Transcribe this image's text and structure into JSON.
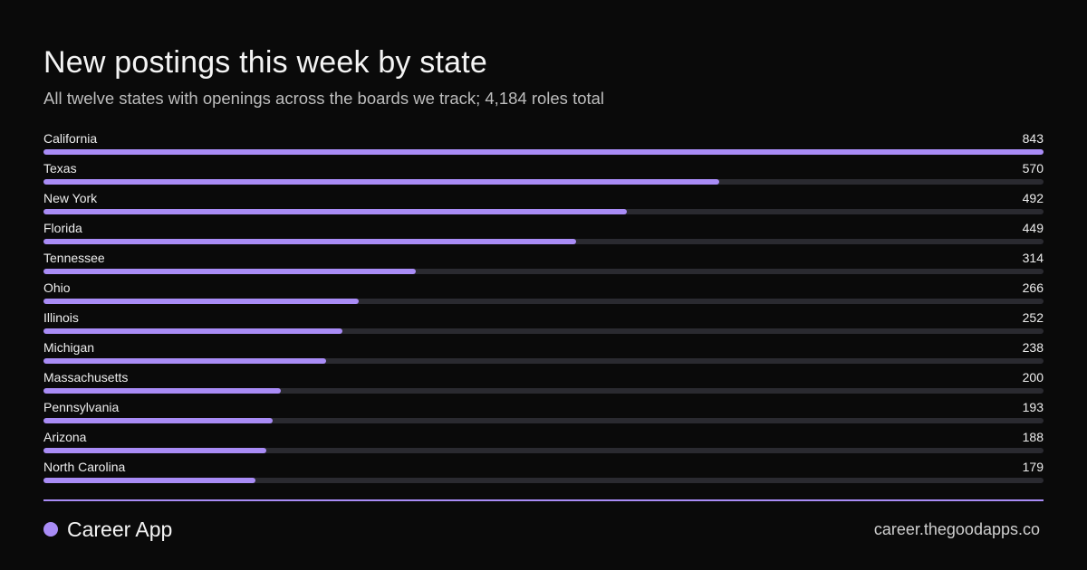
{
  "header": {
    "title": "New postings this week by state",
    "subtitle": "All twelve states with openings across the boards we track; 4,184 roles total"
  },
  "chart_data": {
    "type": "bar",
    "orientation": "horizontal",
    "title": "New postings this week by state",
    "subtitle": "All twelve states with openings across the boards we track; 4,184 roles total",
    "xlabel": "",
    "ylabel": "",
    "xlim": [
      0,
      843
    ],
    "grid": false,
    "legend": "none",
    "categories": [
      "California",
      "Texas",
      "New York",
      "Florida",
      "Tennessee",
      "Ohio",
      "Illinois",
      "Michigan",
      "Massachusetts",
      "Pennsylvania",
      "Arizona",
      "North Carolina"
    ],
    "values": [
      843,
      570,
      492,
      449,
      314,
      266,
      252,
      238,
      200,
      193,
      188,
      179
    ]
  },
  "footer": {
    "brand_name": "Career App",
    "site": "career.thegoodapps.co"
  },
  "colors": {
    "background": "#0a0a0a",
    "accent": "#a98cf6",
    "track": "#2a2a30",
    "text": "#f2f2f2",
    "muted_text": "#bdbdbd"
  },
  "icons": {
    "brand": "brand-dot-icon"
  }
}
